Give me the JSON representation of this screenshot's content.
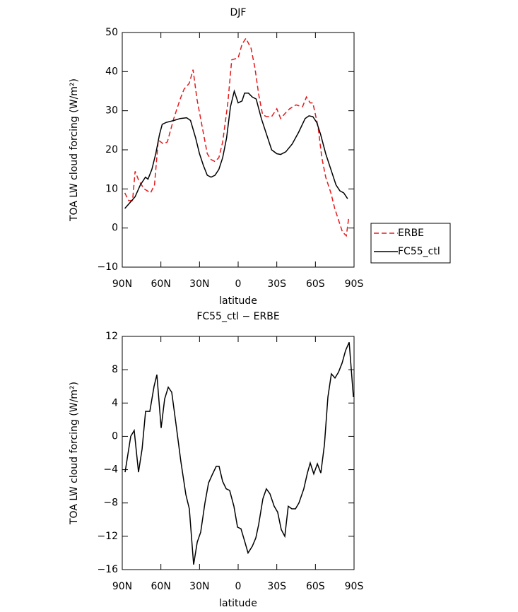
{
  "chart_data": [
    {
      "type": "line",
      "title": "DJF",
      "xlabel": "latitude",
      "ylabel": "TOA LW cloud forcing (W/m²)",
      "xlim": [
        90,
        -90
      ],
      "ylim": [
        -10,
        50
      ],
      "xticks": [
        {
          "value": 90,
          "label": "90N"
        },
        {
          "value": 60,
          "label": "60N"
        },
        {
          "value": 30,
          "label": "30N"
        },
        0,
        {
          "value": -30,
          "label": "30S"
        },
        {
          "value": -60,
          "label": "60S"
        },
        {
          "value": -90,
          "label": "90S"
        }
      ],
      "yticks": [
        {
          "value": -10,
          "label": "−10"
        },
        0,
        10,
        20,
        30,
        40,
        50
      ],
      "legend": "right",
      "series": [
        {
          "name": "ERBE",
          "color": "#e41a1c",
          "style": "dashed",
          "x": [
            88,
            85,
            82,
            80,
            77,
            73,
            68,
            65,
            62,
            58,
            55,
            50,
            45,
            42,
            38,
            35,
            32,
            28,
            24,
            21,
            18,
            15,
            12,
            8,
            5,
            0,
            -3,
            -6,
            -10,
            -13,
            -16,
            -19,
            -22,
            -26,
            -30,
            -33,
            -37,
            -40,
            -45,
            -50,
            -53,
            -56,
            -58,
            -62,
            -65,
            -68,
            -72,
            -75,
            -78,
            -81,
            -84,
            -86
          ],
          "values": [
            9,
            7,
            7,
            14.5,
            12,
            10,
            9,
            11,
            22.5,
            21.5,
            22,
            28,
            33,
            35.5,
            37,
            40.5,
            33,
            26,
            19,
            17.5,
            17,
            18,
            22,
            32,
            43,
            43.5,
            47,
            48.5,
            46,
            41,
            34,
            29,
            28.5,
            28.5,
            30.5,
            28,
            29.5,
            30.5,
            31.5,
            31,
            33.5,
            32,
            32,
            26,
            18,
            13,
            9,
            5,
            2,
            -1,
            -2,
            3
          ]
        },
        {
          "name": "FC55_ctl",
          "color": "#000000",
          "style": "solid",
          "x": [
            88,
            84,
            80,
            76,
            72,
            70,
            67,
            64,
            61,
            59,
            56,
            50,
            45,
            40,
            37,
            33,
            30,
            27,
            24,
            21,
            18,
            15,
            12,
            9,
            6,
            3,
            0,
            -3,
            -5,
            -8,
            -11,
            -14,
            -18,
            -22,
            -26,
            -30,
            -33,
            -37,
            -42,
            -47,
            -52,
            -55,
            -58,
            -61,
            -64,
            -68,
            -72,
            -76,
            -79,
            -82,
            -85
          ],
          "values": [
            5,
            6.5,
            8,
            11,
            13,
            12.5,
            15,
            19,
            24,
            26.5,
            27,
            27.5,
            28,
            28.2,
            27.5,
            23,
            19,
            16,
            13.5,
            13,
            13.5,
            15,
            18,
            23,
            31,
            35,
            32,
            32.5,
            34.5,
            34.5,
            33.5,
            33,
            28,
            24,
            20,
            19,
            18.8,
            19.5,
            21.5,
            24.5,
            28,
            28.7,
            28.5,
            27,
            24,
            19,
            15,
            11,
            9.5,
            9,
            7.5
          ]
        }
      ]
    },
    {
      "type": "line",
      "title": "FC55_ctl − ERBE",
      "xlabel": "latitude",
      "ylabel": "TOA LW cloud forcing (W/m²)",
      "xlim": [
        90,
        -90
      ],
      "ylim": [
        -16,
        12
      ],
      "xticks": [
        {
          "value": 90,
          "label": "90N"
        },
        {
          "value": 60,
          "label": "60N"
        },
        {
          "value": 30,
          "label": "30N"
        },
        0,
        {
          "value": -30,
          "label": "30S"
        },
        {
          "value": -60,
          "label": "60S"
        },
        {
          "value": -90,
          "label": "90S"
        }
      ],
      "yticks": [
        {
          "value": -16,
          "label": "−16"
        },
        {
          "value": -12,
          "label": "−12"
        },
        {
          "value": -8,
          "label": "−8"
        },
        {
          "value": -4,
          "label": "−4"
        },
        0,
        4,
        8,
        12
      ],
      "series": [
        {
          "color": "#000000",
          "style": "solid",
          "x": [
            87.8,
            83.4,
            80.7,
            77.4,
            74.6,
            71.9,
            68.6,
            65.3,
            63.1,
            59.8,
            57.1,
            54.3,
            51.6,
            48.3,
            44.5,
            40.6,
            37.9,
            34.6,
            31.8,
            29.1,
            25.8,
            23,
            19.8,
            17,
            14.8,
            12.1,
            9.3,
            6.6,
            3.3,
            0.5,
            -2.2,
            -4.9,
            -7.7,
            -11,
            -13.7,
            -15.9,
            -19.2,
            -21.9,
            -24.7,
            -28,
            -30.7,
            -33.5,
            -36.2,
            -38.9,
            -41.7,
            -44.5,
            -47.2,
            -51,
            -53.8,
            -56,
            -58.7,
            -61.5,
            -64.2,
            -67,
            -69.7,
            -72.4,
            -75.2,
            -77.9,
            -80.7,
            -83.4,
            -86.2,
            -89.5
          ],
          "values": [
            -4.3,
            0,
            0.7,
            -4.3,
            -1.5,
            3,
            3,
            6,
            7.4,
            1,
            4.5,
            5.9,
            5.3,
            1.5,
            -3,
            -7,
            -8.7,
            -15.4,
            -12.7,
            -11.5,
            -8,
            -5.6,
            -4.5,
            -3.6,
            -3.6,
            -5.4,
            -6.3,
            -6.5,
            -8.4,
            -10.9,
            -11.1,
            -12.5,
            -14,
            -13.2,
            -12.2,
            -10.6,
            -7.5,
            -6.3,
            -6.9,
            -8.4,
            -9.1,
            -11.2,
            -12,
            -8.4,
            -8.7,
            -8.7,
            -8,
            -6.3,
            -4.4,
            -3.2,
            -4.5,
            -3.3,
            -4.4,
            -1,
            4.7,
            7.5,
            7,
            7.7,
            8.8,
            10.3,
            11.3,
            4.7
          ]
        }
      ]
    }
  ]
}
